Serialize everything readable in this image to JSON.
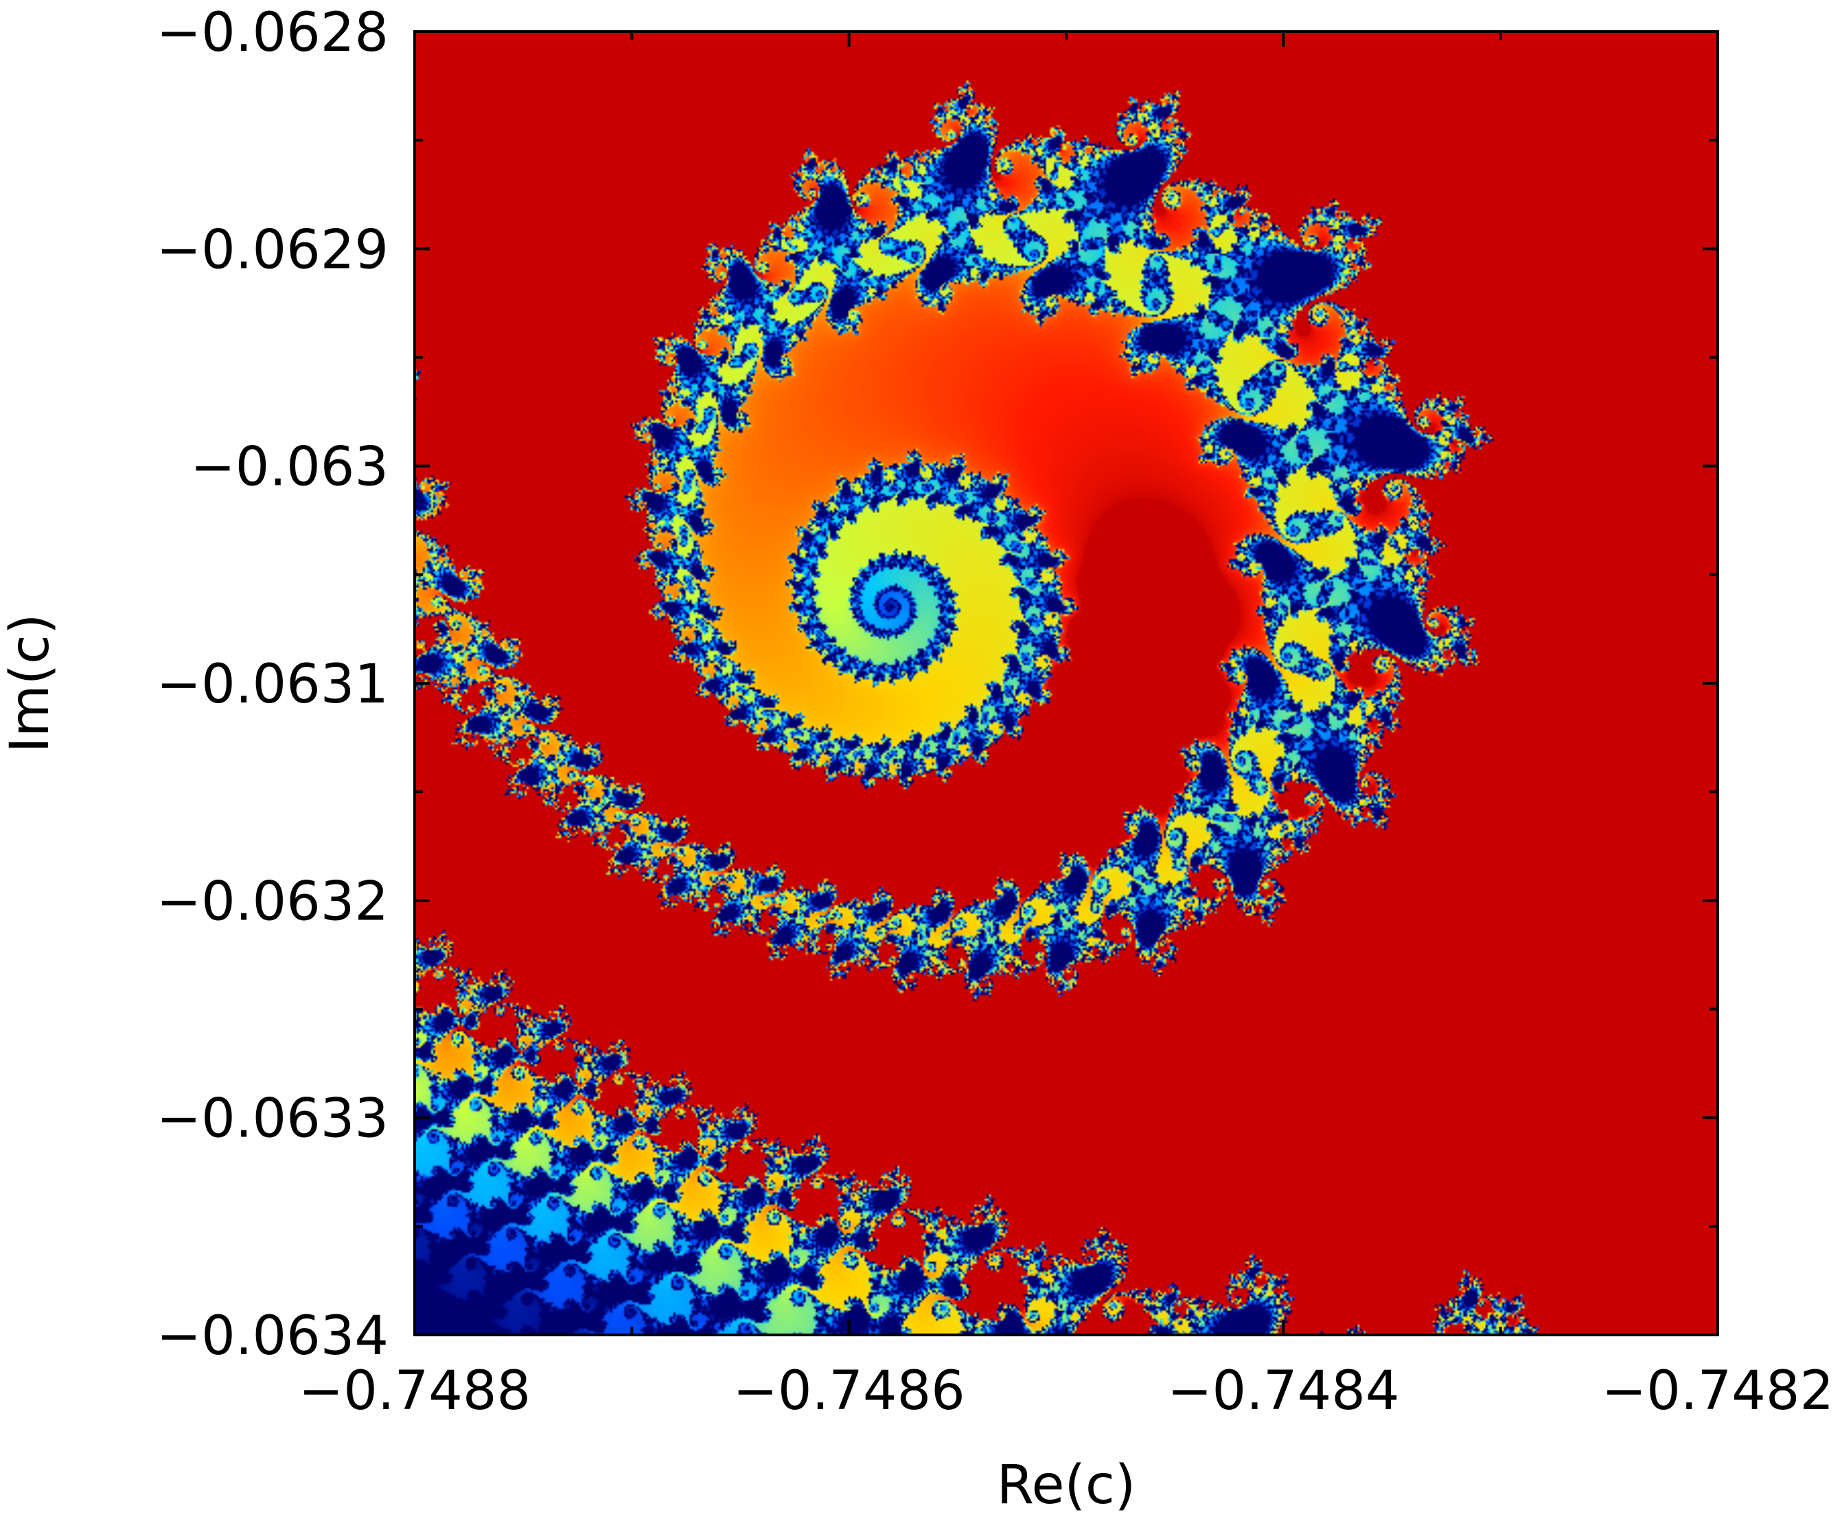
{
  "chart_data": {
    "type": "heatmap",
    "description_kind": "Mandelbrot set escape-time map (spiral region)",
    "xlabel": "Re(c)",
    "ylabel": "Im(c)",
    "xlim": [
      -0.7488,
      -0.7482
    ],
    "ylim": [
      -0.0634,
      -0.0628
    ],
    "xticks": [
      -0.7488,
      -0.7486,
      -0.7484,
      -0.7482
    ],
    "xtick_labels": [
      "−0.7488",
      "−0.7486",
      "−0.7484",
      "−0.7482"
    ],
    "yticks": [
      -0.0634,
      -0.0633,
      -0.0632,
      -0.0631,
      -0.063,
      -0.0629,
      -0.0628
    ],
    "ytick_labels": [
      "−0.0634",
      "−0.0633",
      "−0.0632",
      "−0.0631",
      "−0.063",
      "−0.0629",
      "−0.0628"
    ],
    "grid": false,
    "colormap": [
      "#00007a",
      "#0050ff",
      "#00c8ff",
      "#c8ff40",
      "#ffd400",
      "#ff7a00",
      "#ff1a00",
      "#c80000"
    ],
    "max_iterations": 400
  }
}
